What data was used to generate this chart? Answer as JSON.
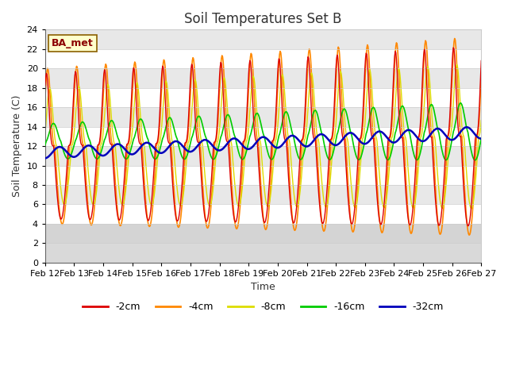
{
  "title": "Soil Temperatures Set B",
  "xlabel": "Time",
  "ylabel": "Soil Temperature (C)",
  "ylim": [
    0,
    24
  ],
  "annotation": "BA_met",
  "fig_bg_color": "#ffffff",
  "plot_bg": "#ffffff",
  "band_color": "#e8e8e8",
  "legend_entries": [
    "-2cm",
    "-4cm",
    "-8cm",
    "-16cm",
    "-32cm"
  ],
  "line_colors": [
    "#dd0000",
    "#ff8800",
    "#dddd00",
    "#00cc00",
    "#0000bb"
  ],
  "line_widths": [
    1.0,
    1.2,
    1.0,
    1.2,
    1.8
  ],
  "x_tick_labels": [
    "Feb 12",
    "Feb 13",
    "Feb 14",
    "Feb 15",
    "Feb 16",
    "Feb 17",
    "Feb 18",
    "Feb 19",
    "Feb 20",
    "Feb 21",
    "Feb 22",
    "Feb 23",
    "Feb 24",
    "Feb 25",
    "Feb 26",
    "Feb 27"
  ],
  "title_fontsize": 12,
  "axis_fontsize": 9,
  "tick_fontsize": 8
}
